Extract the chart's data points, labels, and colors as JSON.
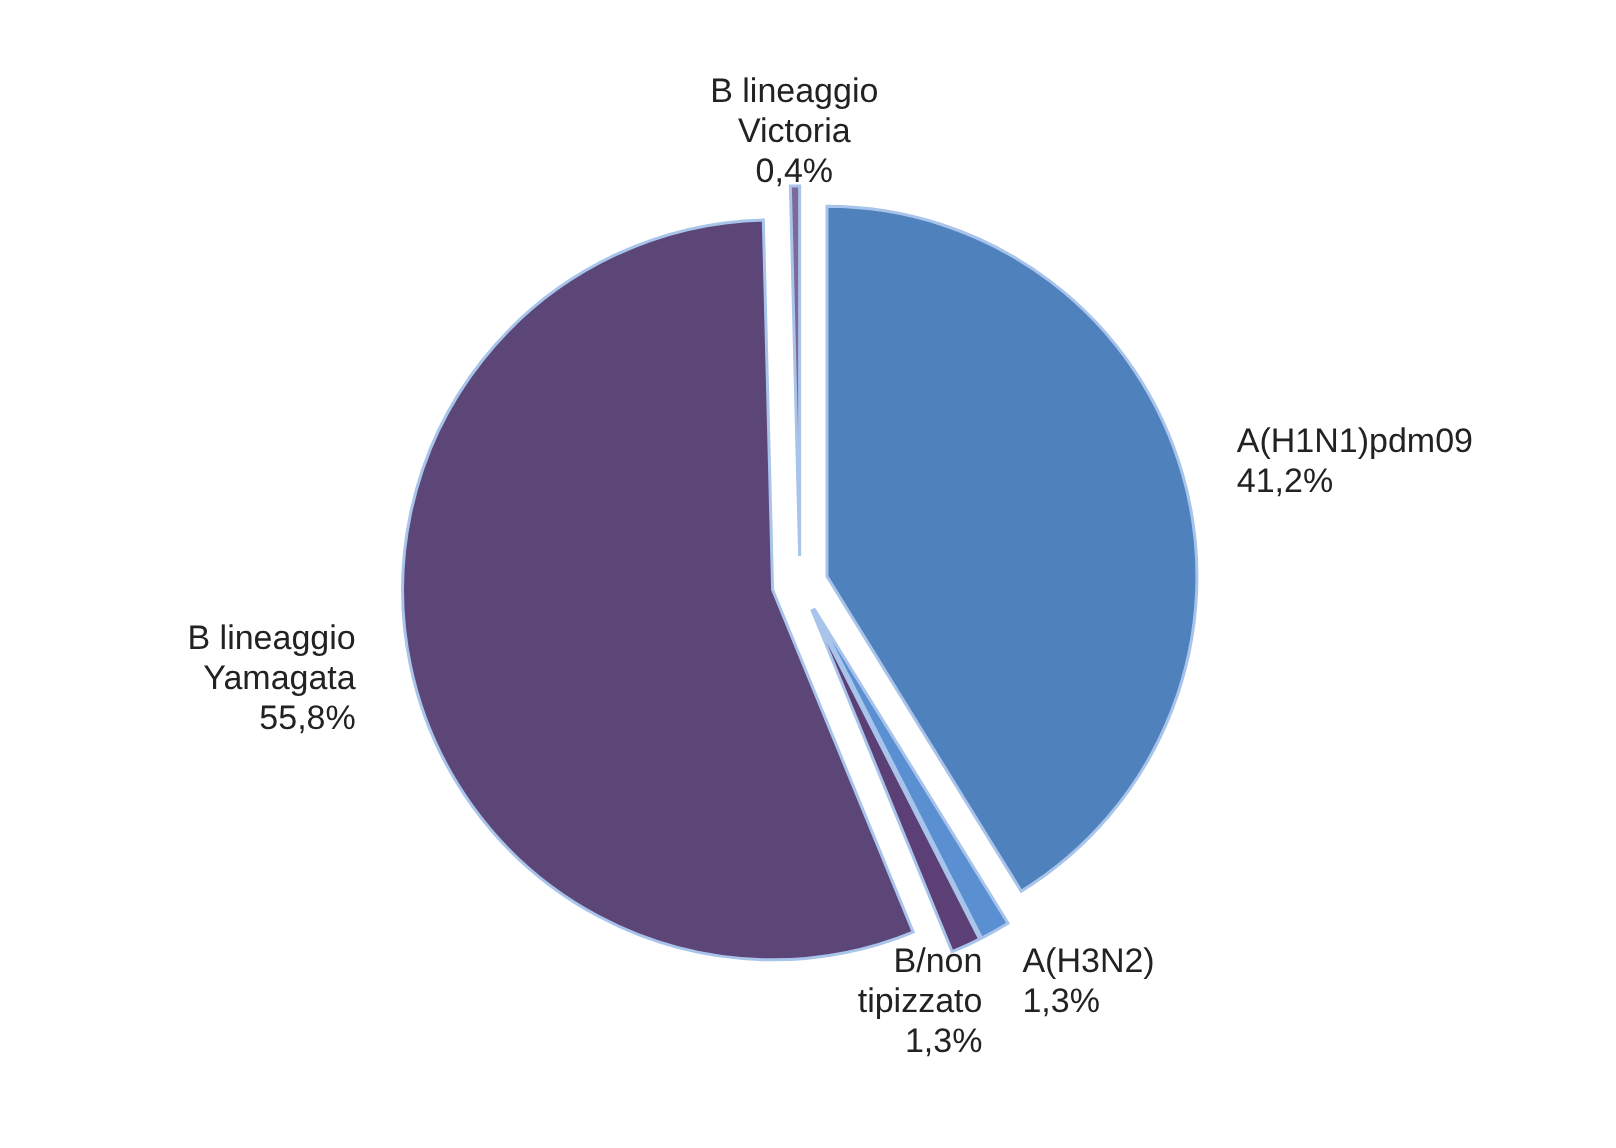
{
  "chart_data": {
    "type": "pie",
    "categories": [
      "A(H1N1)pdm09",
      "A(H3N2)",
      "B/non tipizzato",
      "B lineaggio Yamagata",
      "B lineaggio Victoria"
    ],
    "values": [
      41.2,
      1.3,
      1.3,
      55.8,
      0.4
    ],
    "colors": [
      "#4f81bd",
      "#5a8fd2",
      "#5b3f75",
      "#5c4678",
      "#7e6a9a"
    ],
    "value_labels": [
      "41,2%",
      "1,3%",
      "1,3%",
      "55,8%",
      "0,4%"
    ]
  }
}
